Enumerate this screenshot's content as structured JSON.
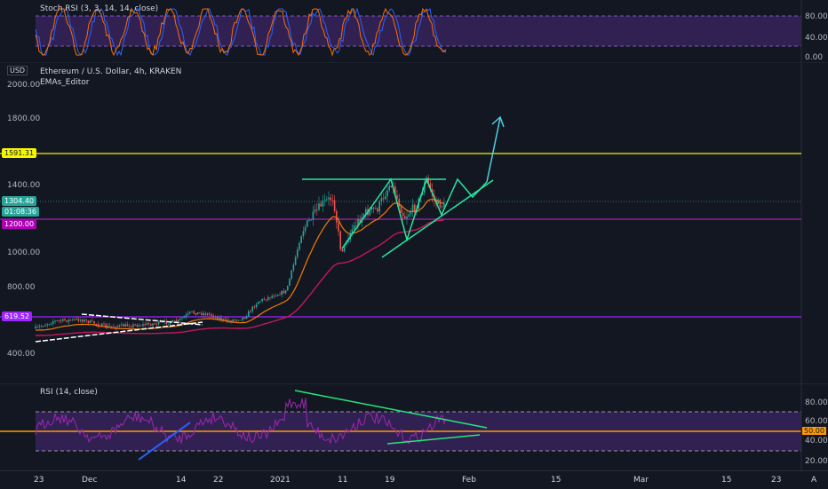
{
  "stoch_pane": {
    "title": "Stoch RSI (3, 3, 14, 14, close)",
    "ticks": [
      "80.00",
      "40.00",
      "0.00"
    ]
  },
  "main_pane": {
    "currency": "USD",
    "symbol": "Ethereum / U.S. Dollar, 4h, KRAKEN",
    "indicator": "EMAs_Editor",
    "price_ticks": [
      "2000.00",
      "1800.00",
      "1400.00",
      "1000.00",
      "800.00",
      "400.00"
    ],
    "tags": {
      "level_high": "1591.31",
      "last_price": "1304.40",
      "countdown": "01:08:36",
      "level_mid": "1200.00",
      "level_low": "619.52"
    },
    "colors": {
      "yellow_level": "#f5f500",
      "magenta_level": "#9c27b0",
      "purple_level": "#9c27ff",
      "pattern": "#26e6a0",
      "projection": "#4dd0e1",
      "ema_fast": "#f57c00",
      "ema_slow": "#c2185b"
    }
  },
  "rsi_pane": {
    "title": "RSI (14, close)",
    "ticks": [
      "80.00",
      "60.00",
      "40.00",
      "20.00"
    ],
    "mid_tag": "50.00"
  },
  "time_axis": {
    "labels": [
      "23",
      "Dec",
      "14",
      "22",
      "2021",
      "11",
      "19",
      "Feb",
      "15",
      "Mar",
      "15",
      "23"
    ],
    "settings_label": "A"
  }
}
